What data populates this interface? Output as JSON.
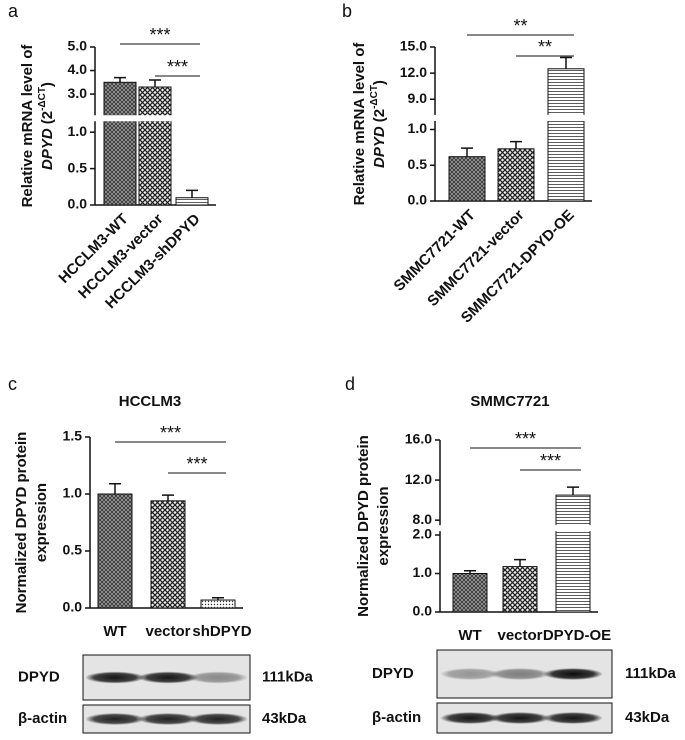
{
  "chart_data": [
    {
      "type": "bar",
      "panel": "a",
      "ylabel": {
        "lines": [
          "Relative mRNA level of"
        ],
        "gene": "DPYD",
        "unit": "(2",
        "exponent": "-ΔCT",
        "unit_end": ")"
      },
      "categories": [
        "HCCLM3-WT",
        "HCCLM3-vector",
        "HCCLM3-shDPYD"
      ],
      "values": [
        3.5,
        3.3,
        0.1
      ],
      "errors": [
        0.2,
        0.3,
        0.1
      ],
      "patterns": [
        "crosshatch",
        "checker",
        "hlines"
      ],
      "rotate_labels": true,
      "ylim": [
        0,
        5
      ],
      "ybreak": [
        1.15,
        2.1
      ],
      "yticks": [
        {
          "value": 0,
          "label": "0.0"
        },
        0.5,
        {
          "value": 1,
          "label": "1.0"
        },
        {
          "value": 3,
          "label": "3.0"
        },
        {
          "value": 4,
          "label": "4.0"
        },
        {
          "value": 5,
          "label": "5.0"
        }
      ],
      "annotations": [
        "***",
        "***"
      ]
    },
    {
      "type": "bar",
      "panel": "b",
      "ylabel": {
        "lines": [
          "Relative mRNA level of"
        ],
        "gene": "DPYD",
        "unit": "(2",
        "exponent": "-ΔCT",
        "unit_end": ")"
      },
      "categories": [
        "SMMC7721-WT",
        "SMMC7721-vector",
        "SMMC7721-DPYD-OE"
      ],
      "values": [
        0.62,
        0.73,
        12.5
      ],
      "errors": [
        0.12,
        0.1,
        1.3
      ],
      "patterns": [
        "crosshatch",
        "checker",
        "hlines"
      ],
      "rotate_labels": true,
      "ylim": [
        0,
        15
      ],
      "ybreak": [
        1.12,
        7.2
      ],
      "yticks": [
        {
          "value": 0,
          "label": "0.0"
        },
        0.5,
        {
          "value": 1,
          "label": "1.0"
        },
        {
          "value": 9,
          "label": "9.0"
        },
        {
          "value": 12,
          "label": "12.0"
        },
        {
          "value": 15,
          "label": "15.0"
        }
      ],
      "annotations": [
        "**",
        "**"
      ]
    },
    {
      "type": "bar",
      "panel": "c",
      "title": "HCCLM3",
      "ylabel": {
        "lines": [
          "Normalized DPYD protein",
          "expression"
        ]
      },
      "categories": [
        "WT",
        "vector",
        "shDPYD"
      ],
      "values": [
        1.0,
        0.94,
        0.07
      ],
      "errors": [
        0.09,
        0.05,
        0.02
      ],
      "patterns": [
        "crosshatch",
        "checker",
        "dots"
      ],
      "rotate_labels": false,
      "ylim": [
        0,
        1.5
      ],
      "yticks": [
        {
          "value": 0,
          "label": "0.0"
        },
        0.5,
        {
          "value": 1,
          "label": "1.0"
        },
        {
          "value": 1.5,
          "label": "1.5"
        }
      ],
      "annotations": [
        "***",
        "***"
      ]
    },
    {
      "type": "bar",
      "panel": "d",
      "title": "SMMC7721",
      "ylabel": {
        "lines": [
          "Normalized DPYD protein",
          "expression"
        ]
      },
      "categories": [
        "WT",
        "vector",
        "DPYD-OE"
      ],
      "values": [
        1.0,
        1.18,
        10.5
      ],
      "errors": [
        0.07,
        0.18,
        0.8
      ],
      "patterns": [
        "crosshatch",
        "checker",
        "hlines"
      ],
      "rotate_labels": false,
      "ylim": [
        0,
        16
      ],
      "ybreak": [
        2.1,
        7.5
      ],
      "yticks": [
        {
          "value": 0,
          "label": "0.0"
        },
        {
          "value": 1,
          "label": "1.0"
        },
        {
          "value": 2,
          "label": "2.0"
        },
        {
          "value": 8,
          "label": "8.0"
        },
        {
          "value": 12,
          "label": "12.0"
        },
        {
          "value": 16,
          "label": "16.0"
        }
      ],
      "annotations": [
        "***",
        "***"
      ]
    }
  ],
  "blots": [
    {
      "rows": [
        {
          "label": "DPYD",
          "size": "111kDa"
        },
        {
          "label": "β-actin",
          "size": "43kDa"
        }
      ]
    },
    {
      "rows": [
        {
          "label": "DPYD",
          "size": "111kDa"
        },
        {
          "label": "β-actin",
          "size": "43kDa"
        }
      ]
    }
  ]
}
